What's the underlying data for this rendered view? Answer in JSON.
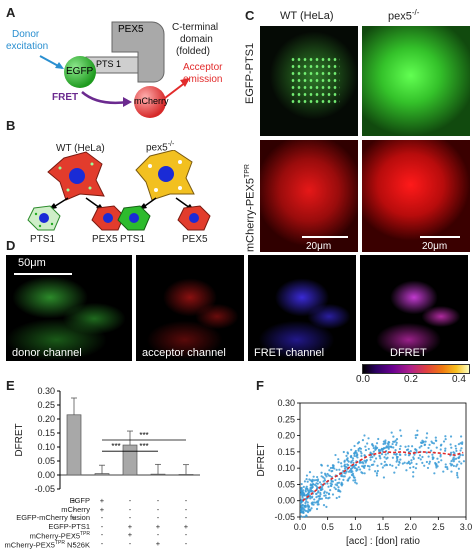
{
  "panels": {
    "A": {
      "letter": "A",
      "donor_label_1": "Donor",
      "donor_label_2": "excitation",
      "egfp": "EGFP",
      "pts1": "PTS 1",
      "pex5": "PEX5",
      "cterm_1": "C-terminal",
      "cterm_2": "domain",
      "cterm_3": "(folded)",
      "fret": "FRET",
      "mcherry": "mCherry",
      "acceptor_1": "Acceptor",
      "acceptor_2": "emission",
      "colors": {
        "donor": "#2a8fd0",
        "acceptor": "#e22b2b",
        "fret": "#6b2a8f",
        "egfp": "#2db42d",
        "mcherry": "#e23a3a"
      }
    },
    "B": {
      "letter": "B",
      "wt_label": "WT (HeLa)",
      "pex_label": "pex5",
      "pex_sup": "-/-",
      "pts1_a": "PTS1",
      "pex5_a": "PEX5",
      "pts1_b": "PTS1",
      "pex5_b": "PEX5"
    },
    "C": {
      "letter": "C",
      "col_wt": "WT  (HeLa)",
      "col_pex": "pex5",
      "col_pex_sup": "-/-",
      "row_egfp": "EGFP-PTS1",
      "row_mch": "mCherry-PEX5",
      "row_mch_sup": "TPR",
      "scale1": "20μm",
      "scale2": "20μm"
    },
    "D": {
      "letter": "D",
      "scale": "50μm",
      "donor": "donor channel",
      "acceptor": "acceptor channel",
      "fret": "FRET channel",
      "dfret": "DFRET",
      "cb_ticks": [
        "0.0",
        "0.2",
        "0.4"
      ]
    },
    "E": {
      "letter": "E",
      "ylabel": "DFRET",
      "sig": "***",
      "row_labels": [
        "EGFP",
        "mCherry",
        "EGFP-mCherry fusion",
        "EGFP-PTS1",
        "mCherry-PEX5",
        "mCherry-PEX5"
      ],
      "row_sups": [
        "",
        "",
        "",
        "",
        "TPR",
        "TPR"
      ],
      "row_suffix": [
        "",
        "",
        "",
        "",
        "",
        " N526K"
      ],
      "signs": [
        [
          "+",
          "+",
          "-",
          "-",
          "-"
        ],
        [
          "-",
          "+",
          "-",
          "-",
          "-"
        ],
        [
          "+",
          "-",
          "-",
          "-",
          "-"
        ],
        [
          "-",
          "-",
          "+",
          "+",
          "+"
        ],
        [
          "-",
          "-",
          "+",
          "-",
          "-"
        ],
        [
          "-",
          "-",
          "-",
          "+",
          "-"
        ]
      ]
    },
    "F": {
      "letter": "F",
      "ylabel": "DFRET",
      "xlabel": "[acc] : [don] ratio"
    }
  },
  "chart_data": [
    {
      "type": "bar",
      "panel": "E",
      "categories": [
        "1",
        "2",
        "3",
        "4",
        "5"
      ],
      "values": [
        0.215,
        0.005,
        0.107,
        0.003,
        0.002
      ],
      "errors": [
        0.06,
        0.03,
        0.05,
        0.035,
        0.035
      ],
      "ylabel": "DFRET",
      "ylim": [
        -0.05,
        0.3
      ],
      "yticks": [
        "-0.05",
        "0.00",
        "0.05",
        "0.10",
        "0.15",
        "0.20",
        "0.25",
        "0.30"
      ],
      "ytick_values": [
        -0.05,
        0,
        0.05,
        0.1,
        0.15,
        0.2,
        0.25,
        0.3
      ],
      "bar_color": "#a8a8a8",
      "significance": [
        {
          "from": 2,
          "to": 3,
          "label": "***"
        },
        {
          "from": 3,
          "to": 4,
          "label": "***"
        },
        {
          "from": 2,
          "to": 5,
          "label": "***"
        }
      ]
    },
    {
      "type": "scatter",
      "panel": "F",
      "xlabel": "[acc] : [don] ratio",
      "ylabel": "DFRET",
      "xlim": [
        0,
        3.0
      ],
      "ylim": [
        -0.05,
        0.3
      ],
      "xticks": [
        "0.0",
        "0.5",
        "1.0",
        "1.5",
        "2.0",
        "2.5",
        "3.0"
      ],
      "xtick_values": [
        0,
        0.5,
        1.0,
        1.5,
        2.0,
        2.5,
        3.0
      ],
      "yticks": [
        "-0.05",
        "0.00",
        "0.05",
        "0.10",
        "0.15",
        "0.20",
        "0.25",
        "0.30"
      ],
      "ytick_values": [
        -0.05,
        0,
        0.05,
        0.1,
        0.15,
        0.2,
        0.25,
        0.3
      ],
      "point_color": "#3a9bd6",
      "fit_color": "#e0292a",
      "fit_x": [
        0.05,
        0.2,
        0.35,
        0.5,
        0.65,
        0.8,
        0.95,
        1.1,
        1.25,
        1.4,
        1.55,
        1.7,
        1.85,
        2.0,
        2.2,
        2.4,
        2.6,
        2.8,
        2.95
      ],
      "fit_y": [
        0.0,
        0.02,
        0.04,
        0.06,
        0.075,
        0.09,
        0.11,
        0.125,
        0.14,
        0.145,
        0.15,
        0.148,
        0.15,
        0.145,
        0.15,
        0.148,
        0.145,
        0.14,
        0.148
      ]
    }
  ]
}
